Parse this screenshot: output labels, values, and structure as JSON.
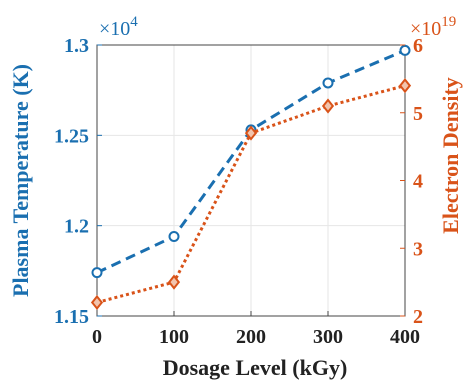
{
  "colors": {
    "left_series": "#1a6fb0",
    "right_series": "#d95319",
    "grid": "#e6e6e6",
    "frame": "#444444",
    "x_axis_text": "#222222"
  },
  "chart_data": {
    "type": "line",
    "grid": true,
    "x": [
      0,
      100,
      200,
      300,
      400
    ],
    "xlim": [
      0,
      400
    ],
    "xlabel": "Dosage Level (kGy)",
    "x_ticks": [
      "0",
      "100",
      "200",
      "300",
      "400"
    ],
    "left_axis": {
      "label": "Plasma Temperature (K)",
      "ylim": [
        1.15,
        1.3
      ],
      "ticks": [
        "1.15",
        "1.2",
        "1.25",
        "1.3"
      ],
      "exponent_base": "×10",
      "exponent_power": "4"
    },
    "right_axis": {
      "label": "Electron Density",
      "ylim": [
        2,
        6
      ],
      "ticks": [
        "2",
        "3",
        "4",
        "5",
        "6"
      ],
      "exponent_base": "×10",
      "exponent_power": "19"
    },
    "series": [
      {
        "axis": "left",
        "line_style": "dashed",
        "marker": "circle",
        "color": "#1a6fb0",
        "values": [
          1.174,
          1.194,
          1.253,
          1.279,
          1.297
        ]
      },
      {
        "axis": "right",
        "line_style": "dotted",
        "marker": "diamond",
        "color": "#d95319",
        "values": [
          2.2,
          2.5,
          4.7,
          5.1,
          5.4
        ]
      }
    ]
  }
}
